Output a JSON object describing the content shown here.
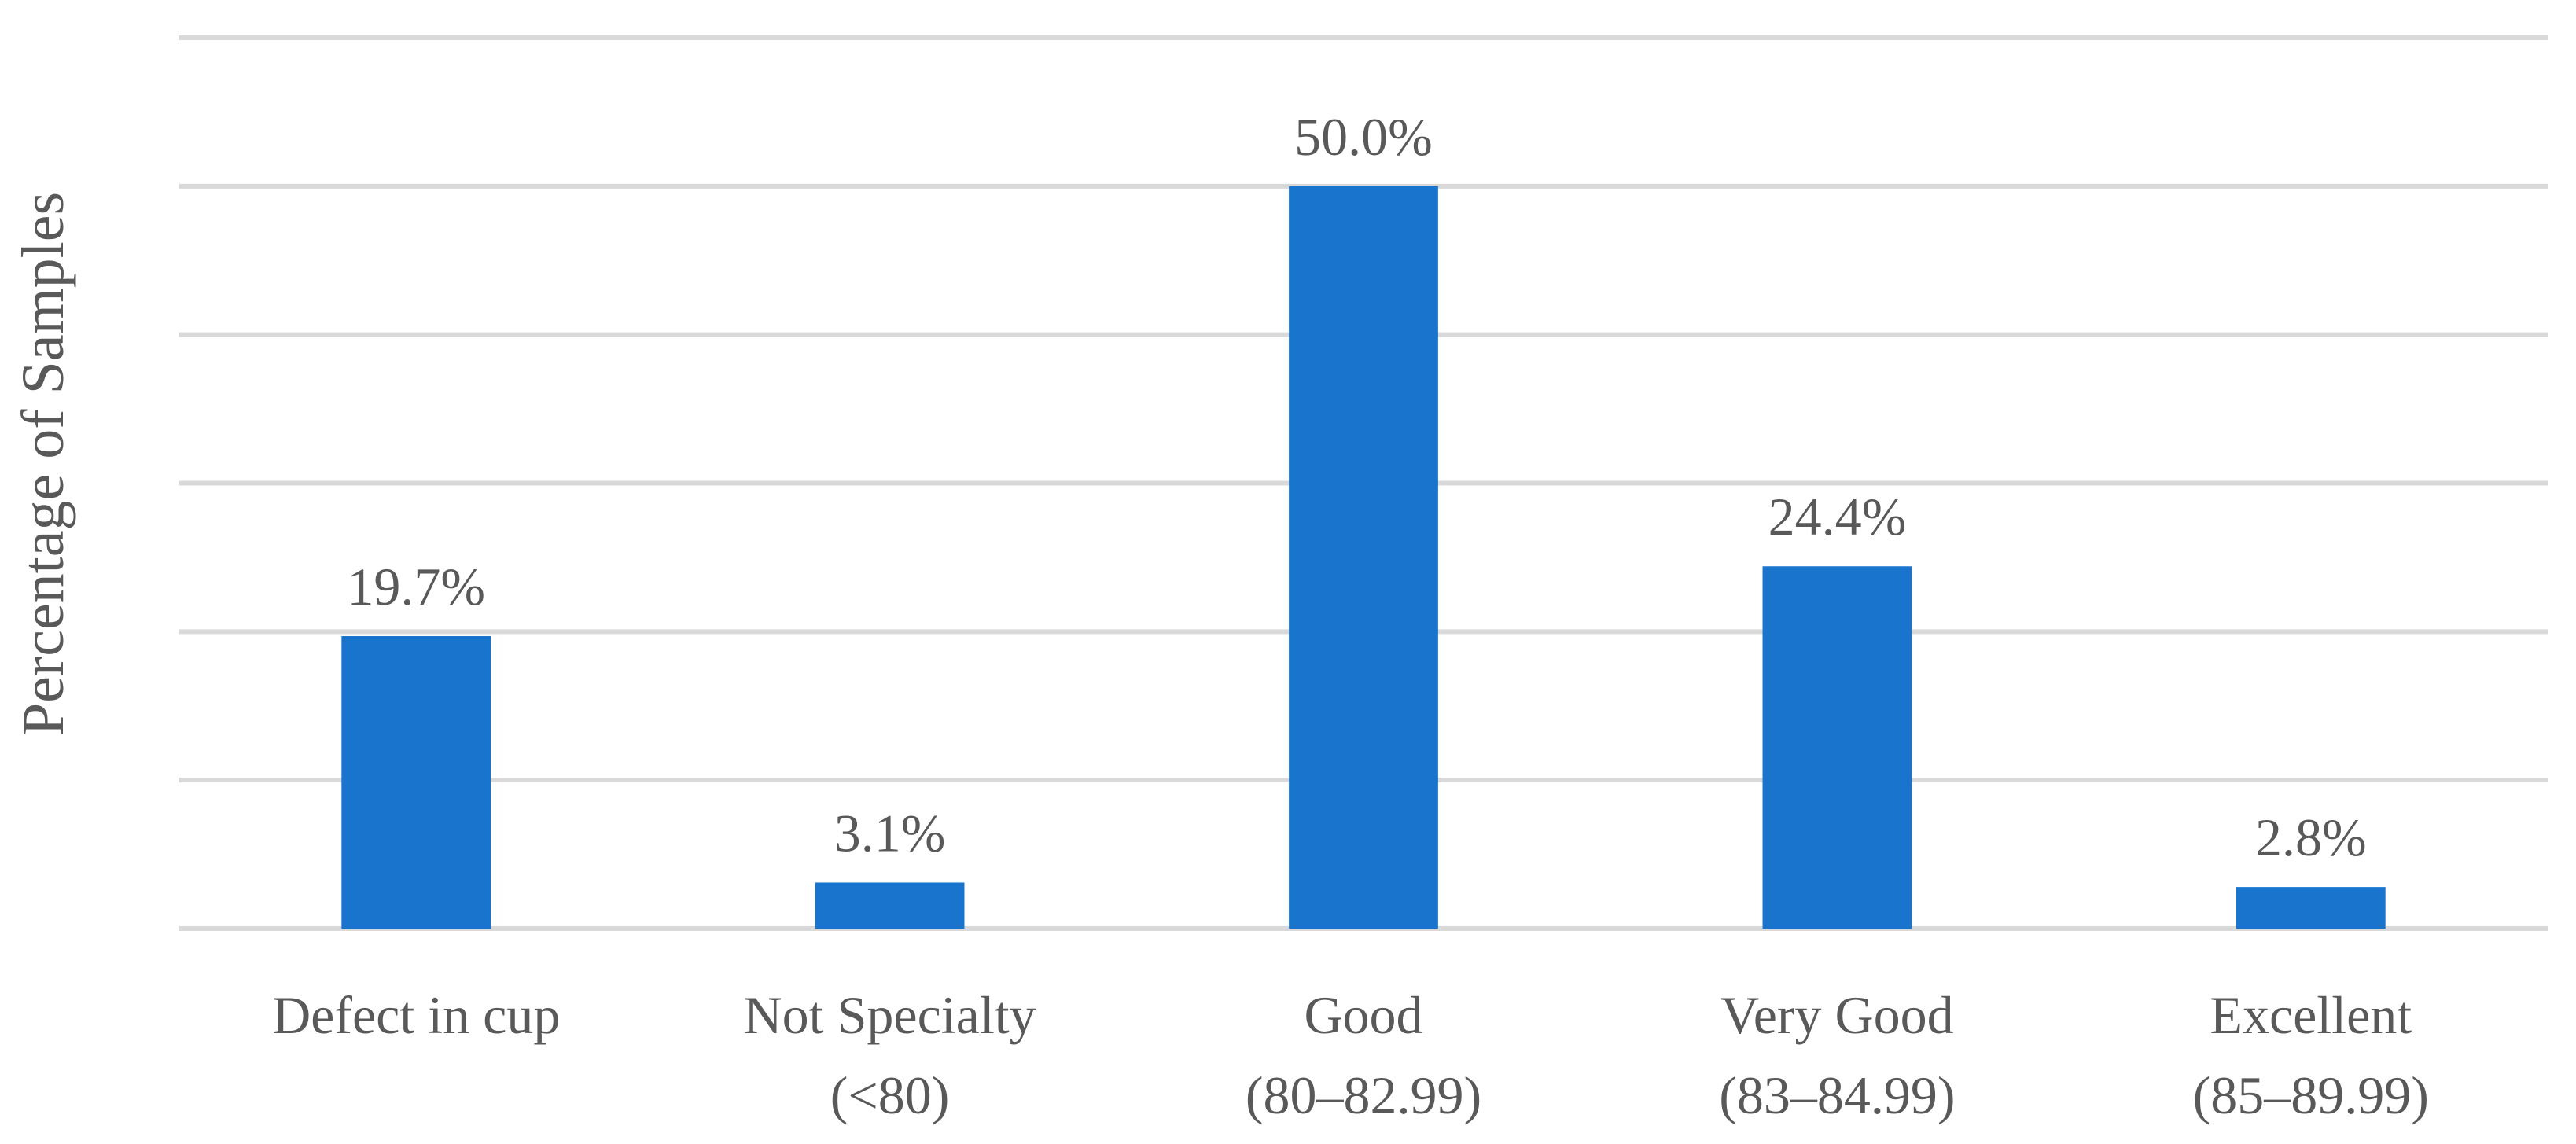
{
  "chart_data": {
    "type": "bar",
    "title": "",
    "xlabel": "",
    "ylabel": "Percentage of Samples",
    "categories": [
      [
        "Defect in cup"
      ],
      [
        "Not Specialty",
        "(<80)"
      ],
      [
        "Good",
        "(80–82.99)"
      ],
      [
        "Very Good",
        "(83–84.99)"
      ],
      [
        "Excellent",
        "(85–89.99)"
      ]
    ],
    "values": [
      19.7,
      3.1,
      50.0,
      24.4,
      2.8
    ],
    "data_labels": [
      "19.7%",
      "3.1%",
      "50.0%",
      "24.4%",
      "2.8%"
    ],
    "ylim": [
      0,
      60
    ],
    "y_gridline_step": 10,
    "y_tick_labels_shown": false,
    "grid": true,
    "legend": "none",
    "bar_color": "#1874cd",
    "grid_color": "#d9d9d9",
    "text_color": "#595959"
  }
}
